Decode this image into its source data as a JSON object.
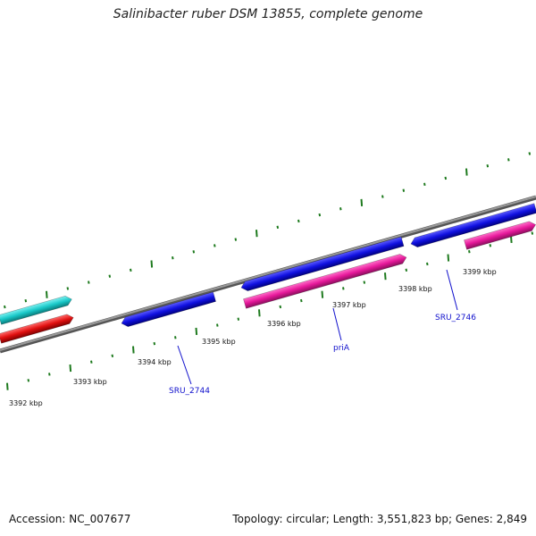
{
  "title": "Salinibacter ruber DSM 13855, complete genome",
  "footer": {
    "accession": "Accession: NC_007677",
    "summary": "Topology: circular; Length: 3,551,823 bp; Genes: 2,849"
  },
  "colors": {
    "backbone": "#808080",
    "tick": "#1e7a1e",
    "plus_strand_gene": "#1010e0",
    "minus_strand_gene": "#e6189a",
    "cyan_feature": "#19c8c8",
    "red_feature": "#e01010",
    "label": "#1010cc"
  },
  "scale": {
    "unit": "kbp",
    "labels": [
      {
        "kbp": 3392,
        "text": "3392 kbp"
      },
      {
        "kbp": 3393,
        "text": "3393 kbp"
      },
      {
        "kbp": 3394,
        "text": "3394 kbp"
      },
      {
        "kbp": 3395,
        "text": "3395 kbp"
      },
      {
        "kbp": 3396,
        "text": "3396 kbp"
      },
      {
        "kbp": 3397,
        "text": "3397 kbp"
      },
      {
        "kbp": 3398,
        "text": "3398 kbp"
      },
      {
        "kbp": 3399,
        "text": "3399 kbp"
      }
    ]
  },
  "gene_labels": [
    {
      "text": "SRU_2744"
    },
    {
      "text": "priA"
    },
    {
      "text": "SRU_2746"
    }
  ]
}
